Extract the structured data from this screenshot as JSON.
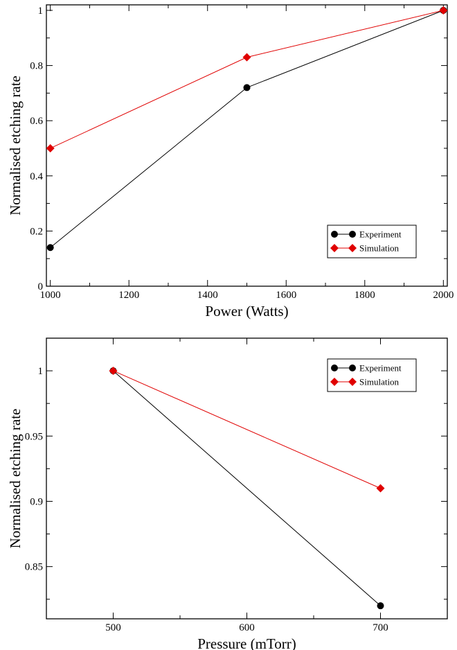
{
  "chart_data": [
    {
      "type": "line",
      "title": "",
      "xlabel": "Power (Watts)",
      "ylabel": "Normalised etching rate",
      "xlim": [
        990,
        2010
      ],
      "ylim": [
        0,
        1.02
      ],
      "xticks": [
        1000,
        1200,
        1400,
        1600,
        1800,
        2000
      ],
      "xtick_labels": [
        "1000",
        "1200",
        "1400",
        "1600",
        "1800",
        "2000"
      ],
      "yticks": [
        0,
        0.2,
        0.4,
        0.6,
        0.8,
        1
      ],
      "ytick_labels": [
        "0",
        "0.2",
        "0.4",
        "0.6",
        "0.8",
        "1"
      ],
      "grid": false,
      "legend_position": "bottom-right",
      "series": [
        {
          "name": "Experiment",
          "color": "#000000",
          "marker": "circle",
          "x": [
            1000,
            1500,
            2000
          ],
          "y": [
            0.14,
            0.72,
            1.0
          ]
        },
        {
          "name": "Simulation",
          "color": "#e00000",
          "marker": "diamond",
          "x": [
            1000,
            1500,
            2000
          ],
          "y": [
            0.5,
            0.83,
            1.0
          ]
        }
      ]
    },
    {
      "type": "line",
      "title": "",
      "xlabel": "Pressure (mTorr)",
      "ylabel": "Normalised etching rate",
      "xlim": [
        450,
        750
      ],
      "ylim": [
        0.81,
        1.025
      ],
      "xticks": [
        500,
        600,
        700
      ],
      "xtick_labels": [
        "500",
        "600",
        "700"
      ],
      "yticks": [
        0.85,
        0.9,
        0.95,
        1
      ],
      "ytick_labels": [
        "0.85",
        "0.9",
        "0.95",
        "1"
      ],
      "grid": false,
      "legend_position": "top-right",
      "series": [
        {
          "name": "Experiment",
          "color": "#000000",
          "marker": "circle",
          "x": [
            500,
            700
          ],
          "y": [
            1.0,
            0.82
          ]
        },
        {
          "name": "Simulation",
          "color": "#e00000",
          "marker": "diamond",
          "x": [
            500,
            700
          ],
          "y": [
            1.0,
            0.91
          ]
        }
      ]
    }
  ]
}
